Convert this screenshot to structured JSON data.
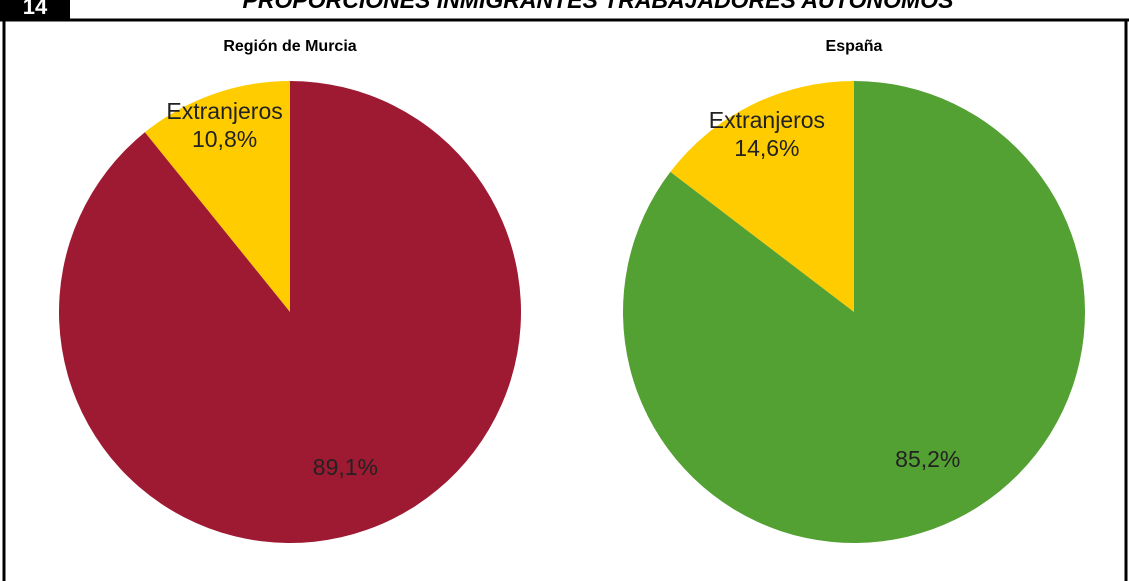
{
  "header": {
    "number": "14",
    "title": "PROPORCIONES INMIGRANTES TRABAJADORES AUTÓNOMOS"
  },
  "chart_data": [
    {
      "type": "pie",
      "title": "Región de Murcia",
      "categories": [
        "Extranjeros",
        null
      ],
      "values": [
        10.8,
        89.1
      ],
      "value_labels": [
        "10,8%",
        "89,1%"
      ],
      "colors": [
        "#ffcc00",
        "#9e1a32"
      ]
    },
    {
      "type": "pie",
      "title": "España",
      "categories": [
        "Extranjeros",
        null
      ],
      "values": [
        14.6,
        85.2
      ],
      "value_labels": [
        "14,6%",
        "85,2%"
      ],
      "colors": [
        "#ffcc00",
        "#53a033"
      ]
    }
  ]
}
